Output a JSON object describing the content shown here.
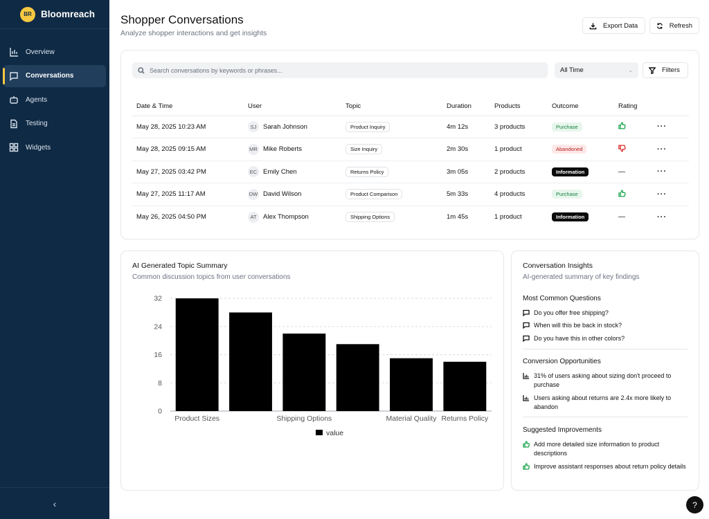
{
  "brand": {
    "logo": "BR",
    "name": "Bloomreach"
  },
  "sidebar": {
    "items": [
      {
        "label": "Overview",
        "icon": "bar-chart-icon"
      },
      {
        "label": "Conversations",
        "icon": "chat-icon",
        "active": true
      },
      {
        "label": "Agents",
        "icon": "bot-icon"
      },
      {
        "label": "Testing",
        "icon": "document-icon"
      },
      {
        "label": "Widgets",
        "icon": "grid-icon"
      }
    ],
    "collapse": "‹"
  },
  "header": {
    "title": "Shopper Conversations",
    "subtitle": "Analyze shopper interactions and get insights",
    "export_label": "Export Data",
    "refresh_label": "Refresh"
  },
  "toolbar": {
    "search_placeholder": "Search conversations by keywords or phrases...",
    "time_filter": "All Time",
    "filters_label": "Filters"
  },
  "table": {
    "columns": [
      "Date & Time",
      "User",
      "Topic",
      "Duration",
      "Products",
      "Outcome",
      "Rating"
    ],
    "rows": [
      {
        "date": "May 28, 2025 10:23 AM",
        "initials": "SJ",
        "user": "Sarah Johnson",
        "topic": "Product Inquiry",
        "duration": "4m 12s",
        "products": "3 products",
        "outcome": "Purchase",
        "outcome_type": "purchase",
        "rating": "up"
      },
      {
        "date": "May 28, 2025 09:15 AM",
        "initials": "MR",
        "user": "Mike Roberts",
        "topic": "Size Inquiry",
        "duration": "2m 30s",
        "products": "1 product",
        "outcome": "Abandoned",
        "outcome_type": "abandoned",
        "rating": "down"
      },
      {
        "date": "May 27, 2025 03:42 PM",
        "initials": "EC",
        "user": "Emily Chen",
        "topic": "Returns Policy",
        "duration": "3m 05s",
        "products": "2 products",
        "outcome": "Information",
        "outcome_type": "information",
        "rating": "none"
      },
      {
        "date": "May 27, 2025 11:17 AM",
        "initials": "DW",
        "user": "David Wilson",
        "topic": "Product Comparison",
        "duration": "5m 33s",
        "products": "4 products",
        "outcome": "Purchase",
        "outcome_type": "purchase",
        "rating": "up"
      },
      {
        "date": "May 26, 2025 04:50 PM",
        "initials": "AT",
        "user": "Alex Thompson",
        "topic": "Shipping Options",
        "duration": "1m 45s",
        "products": "1 product",
        "outcome": "Information",
        "outcome_type": "information",
        "rating": "none"
      }
    ],
    "rating_none": "—",
    "more": "···"
  },
  "topic_summary": {
    "title": "AI Generated Topic Summary",
    "subtitle": "Common discussion topics from user conversations"
  },
  "chart_data": {
    "type": "bar",
    "categories": [
      "Product Sizes",
      "",
      "Shipping Options",
      "",
      "Material Quality",
      "Returns Policy"
    ],
    "series": [
      {
        "name": "value",
        "values": [
          32,
          28,
          22,
          19,
          15,
          14
        ]
      }
    ],
    "yticks": [
      0,
      8,
      16,
      24,
      32
    ],
    "ylim": [
      0,
      34
    ],
    "grid": true,
    "legend": "bottom",
    "bar_color": "#000000"
  },
  "insights": {
    "title": "Conversation Insights",
    "subtitle": "AI-generated summary of key findings",
    "questions_title": "Most Common Questions",
    "questions": [
      "Do you offer free shipping?",
      "When will this be back in stock?",
      "Do you have this in other colors?"
    ],
    "conversion_title": "Conversion Opportunities",
    "conversion": [
      "31% of users asking about sizing don't proceed to purchase",
      "Users asking about returns are 2.4x more likely to abandon"
    ],
    "improvements_title": "Suggested Improvements",
    "improvements": [
      "Add more detailed size information to product descriptions",
      "Improve assistant responses about return policy details"
    ]
  },
  "help_label": "?"
}
